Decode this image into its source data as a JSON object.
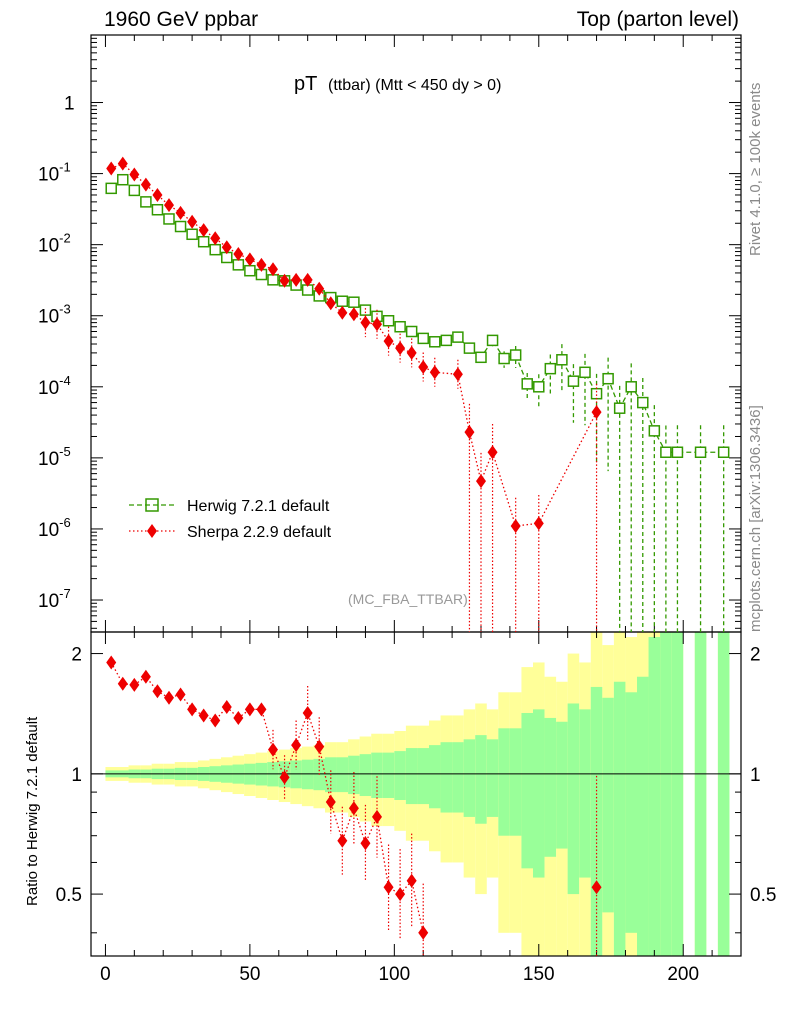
{
  "header": {
    "left": "1960 GeV ppbar",
    "right": "Top (parton level)"
  },
  "side_labels": {
    "rivet": "Rivet 4.1.0, ≥ 100k events",
    "mcplots": "mcplots.cern.ch [arXiv:1306.3436]"
  },
  "chart_data": {
    "type": "scatter",
    "title_main": "pT",
    "title_rest": "(ttbar) (Mtt < 450 dy > 0)",
    "analysis_tag": "(MC_FBA_TTBAR)",
    "ylabel_lower": "Ratio to Herwig 7.2.1 default",
    "xlim": [
      -5,
      220
    ],
    "ylim_upper_log10": [
      -7.45,
      0.95
    ],
    "ylim_lower_log10": [
      -0.456,
      0.355
    ],
    "x_ticks": [
      "0",
      "50",
      "100",
      "150",
      "200"
    ],
    "y_ticks_upper": [
      "1",
      "10^-1",
      "10^-2",
      "10^-3",
      "10^-4",
      "10^-5",
      "10^-6",
      "10^-7"
    ],
    "y_ticks_lower": [
      "2",
      "1",
      "0.5"
    ],
    "legend": [
      {
        "name": "Herwig 7.2.1 default",
        "color": "#339900",
        "marker": "open-square",
        "line": "dashed"
      },
      {
        "name": "Sherpa 2.2.9 default",
        "color": "#ee0000",
        "marker": "diamond",
        "line": "dotted"
      }
    ],
    "x": [
      2,
      6,
      10,
      14,
      18,
      22,
      26,
      30,
      34,
      38,
      42,
      46,
      50,
      54,
      58,
      62,
      66,
      70,
      74,
      78,
      82,
      86,
      90,
      94,
      98,
      102,
      106,
      110,
      114,
      118,
      122,
      126,
      130,
      134,
      138,
      142,
      146,
      150,
      154,
      158,
      162,
      166,
      170,
      174,
      178,
      182,
      186,
      190,
      194,
      198,
      202,
      206,
      210,
      214
    ],
    "series": [
      {
        "name": "Herwig 7.2.1 default",
        "values": [
          0.062,
          0.082,
          0.058,
          0.04,
          0.031,
          0.023,
          0.018,
          0.014,
          0.011,
          0.0085,
          0.0066,
          0.0052,
          0.0043,
          0.0038,
          0.0032,
          0.0031,
          0.0027,
          0.0023,
          0.0019,
          0.0018,
          0.0016,
          0.00155,
          0.0012,
          0.00098,
          0.00085,
          0.0007,
          0.0006,
          0.00048,
          0.00043,
          0.00045,
          0.0005,
          0.00035,
          0.00026,
          0.00045,
          0.00025,
          0.00028,
          0.00011,
          0.0001,
          0.00018,
          0.00024,
          0.00012,
          0.00016,
          8e-05,
          0.00013,
          5e-05,
          0.0001,
          6e-05,
          2.4e-05,
          1.2e-05,
          1.2e-05,
          null,
          1.2e-05,
          null,
          1.2e-05
        ]
      },
      {
        "name": "Sherpa 2.2.9 default",
        "values": [
          0.118,
          0.138,
          0.097,
          0.07,
          0.05,
          0.036,
          0.028,
          0.021,
          0.016,
          0.0123,
          0.0092,
          0.0074,
          0.0062,
          0.0052,
          0.0045,
          0.0031,
          0.0032,
          0.0032,
          0.0024,
          0.0015,
          0.0011,
          0.00105,
          0.0008,
          0.00076,
          0.00044,
          0.00035,
          0.0003,
          0.00019,
          0.00016,
          null,
          0.00015,
          2.3e-05,
          4.7e-06,
          1.2e-05,
          null,
          1.1e-06,
          null,
          1.2e-06,
          null,
          null,
          null,
          null,
          4.4e-05,
          null,
          null,
          null,
          null,
          null,
          null,
          null,
          null,
          null,
          null,
          null
        ]
      }
    ],
    "ratio": [
      1.9,
      1.68,
      1.67,
      1.75,
      1.61,
      1.55,
      1.58,
      1.45,
      1.4,
      1.36,
      1.47,
      1.38,
      1.45,
      1.45,
      1.15,
      0.98,
      1.18,
      1.42,
      1.17,
      0.85,
      0.68,
      0.82,
      0.67,
      0.78,
      0.52,
      0.5,
      0.54,
      0.4,
      null,
      null,
      null,
      null,
      null,
      null,
      null,
      null,
      null,
      null,
      null,
      null,
      null,
      null,
      0.52,
      null,
      null,
      null,
      null,
      null,
      null,
      null,
      null,
      null,
      null,
      null
    ],
    "band_stat": [
      0.02,
      0.02,
      0.025,
      0.025,
      0.03,
      0.03,
      0.035,
      0.035,
      0.04,
      0.045,
      0.05,
      0.055,
      0.06,
      0.065,
      0.07,
      0.075,
      0.08,
      0.085,
      0.09,
      0.1,
      0.1,
      0.11,
      0.12,
      0.13,
      0.13,
      0.14,
      0.16,
      0.16,
      0.18,
      0.2,
      0.2,
      0.22,
      0.25,
      0.22,
      0.3,
      0.3,
      0.42,
      0.45,
      0.38,
      0.35,
      0.5,
      0.45,
      0.65,
      0.55,
      0.7,
      0.6,
      0.75,
      1.2,
      1.5,
      1.5,
      null,
      1.5,
      null,
      1.5
    ],
    "band_tot": [
      0.04,
      0.04,
      0.05,
      0.05,
      0.06,
      0.06,
      0.07,
      0.07,
      0.08,
      0.09,
      0.1,
      0.11,
      0.12,
      0.13,
      0.14,
      0.15,
      0.16,
      0.17,
      0.18,
      0.2,
      0.2,
      0.22,
      0.24,
      0.26,
      0.26,
      0.28,
      0.32,
      0.32,
      0.36,
      0.4,
      0.4,
      0.45,
      0.5,
      0.45,
      0.6,
      0.6,
      0.85,
      0.9,
      0.75,
      0.7,
      1.0,
      0.9,
      1.3,
      1.1,
      1.4,
      1.2,
      1.5,
      2.4,
      3.0,
      3.0,
      null,
      3.0,
      null,
      3.0
    ]
  }
}
